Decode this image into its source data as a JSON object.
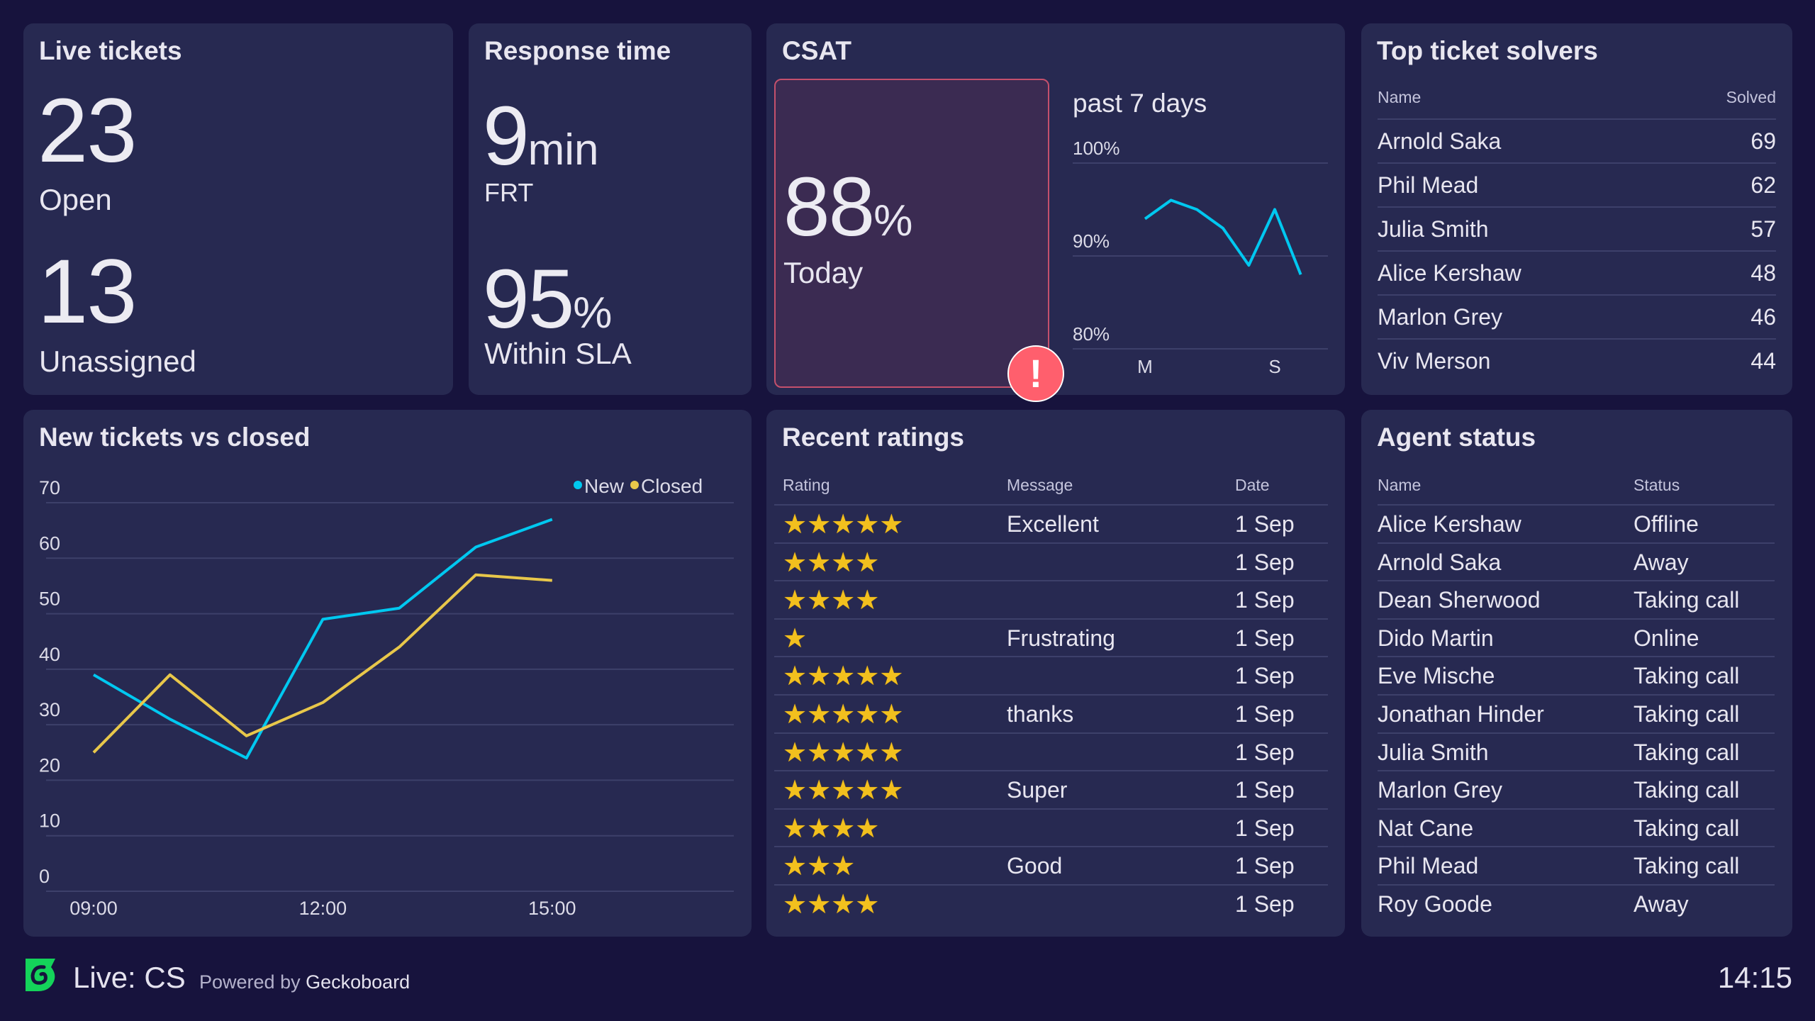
{
  "live_tickets": {
    "title": "Live tickets",
    "open_value": "23",
    "open_label": "Open",
    "unassigned_value": "13",
    "unassigned_label": "Unassigned"
  },
  "response_time": {
    "title": "Response time",
    "frt_value": "9",
    "frt_unit": "min",
    "frt_label": "FRT",
    "sla_value": "95",
    "sla_unit": "%",
    "sla_label": "Within SLA"
  },
  "csat": {
    "title": "CSAT",
    "today_value": "88",
    "today_unit": "%",
    "today_label": "Today",
    "alert_icon": "exclamation-icon",
    "alert_color": "#ff5f6d",
    "trend_label": "past 7 days",
    "chart_data": {
      "type": "line",
      "values": [
        94,
        96,
        95,
        93,
        89,
        95,
        88
      ],
      "x_ticks": [
        "M",
        "",
        "",
        "",
        "",
        "S",
        ""
      ],
      "y_ticks": [
        "100%",
        "90%",
        "80%"
      ],
      "ylim": [
        80,
        100
      ],
      "color": "#00c8f0"
    }
  },
  "top_solvers": {
    "title": "Top ticket solvers",
    "col_name": "Name",
    "col_solved": "Solved",
    "rows": [
      {
        "name": "Arnold Saka",
        "solved": "69"
      },
      {
        "name": "Phil Mead",
        "solved": "62"
      },
      {
        "name": "Julia Smith",
        "solved": "57"
      },
      {
        "name": "Alice Kershaw",
        "solved": "48"
      },
      {
        "name": "Marlon Grey",
        "solved": "46"
      },
      {
        "name": "Viv Merson",
        "solved": "44"
      }
    ]
  },
  "new_vs_closed": {
    "title": "New tickets vs closed",
    "chart_data": {
      "type": "line",
      "x": [
        "09:00",
        "10:00",
        "11:00",
        "12:00",
        "13:00",
        "14:00",
        "15:00"
      ],
      "x_tick_labels": [
        "09:00",
        "12:00",
        "15:00"
      ],
      "y_ticks": [
        0,
        10,
        20,
        30,
        40,
        50,
        60,
        70
      ],
      "ylim": [
        0,
        70
      ],
      "xlim": [
        "09:00",
        "17:22"
      ],
      "grid": true,
      "legend": "top-right",
      "series": [
        {
          "name": "New",
          "color": "#00c8f0",
          "values": [
            39,
            31,
            24,
            49,
            51,
            62,
            67
          ]
        },
        {
          "name": "Closed",
          "color": "#e8c74a",
          "values": [
            25,
            39,
            28,
            34,
            44,
            57,
            56
          ]
        }
      ]
    }
  },
  "recent_ratings": {
    "title": "Recent ratings",
    "col_rating": "Rating",
    "col_message": "Message",
    "col_date": "Date",
    "rows": [
      {
        "rating": 5,
        "message": "Excellent",
        "date": "1 Sep"
      },
      {
        "rating": 4,
        "message": "",
        "date": "1 Sep"
      },
      {
        "rating": 4,
        "message": "",
        "date": "1 Sep"
      },
      {
        "rating": 1,
        "message": "Frustrating",
        "date": "1 Sep"
      },
      {
        "rating": 5,
        "message": "",
        "date": "1 Sep"
      },
      {
        "rating": 5,
        "message": "thanks",
        "date": "1 Sep"
      },
      {
        "rating": 5,
        "message": "",
        "date": "1 Sep"
      },
      {
        "rating": 5,
        "message": "Super",
        "date": "1 Sep"
      },
      {
        "rating": 4,
        "message": "",
        "date": "1 Sep"
      },
      {
        "rating": 3,
        "message": "Good",
        "date": "1 Sep"
      },
      {
        "rating": 4,
        "message": "",
        "date": "1 Sep"
      }
    ]
  },
  "agent_status": {
    "title": "Agent status",
    "col_name": "Name",
    "col_status": "Status",
    "rows": [
      {
        "name": "Alice Kershaw",
        "status": "Offline"
      },
      {
        "name": "Arnold Saka",
        "status": "Away"
      },
      {
        "name": "Dean Sherwood",
        "status": "Taking call"
      },
      {
        "name": "Dido Martin",
        "status": "Online"
      },
      {
        "name": "Eve Mische",
        "status": "Taking call"
      },
      {
        "name": "Jonathan Hinder",
        "status": "Taking call"
      },
      {
        "name": "Julia Smith",
        "status": "Taking call"
      },
      {
        "name": "Marlon Grey",
        "status": "Taking call"
      },
      {
        "name": "Nat Cane",
        "status": "Taking call"
      },
      {
        "name": "Phil Mead",
        "status": "Taking call"
      },
      {
        "name": "Roy Goode",
        "status": "Away"
      }
    ]
  },
  "footer": {
    "dashboard_name": "Live: CS",
    "powered_by": "Powered by",
    "brand": "Geckoboard",
    "time": "14:15",
    "logo_color": "#14d35a"
  }
}
